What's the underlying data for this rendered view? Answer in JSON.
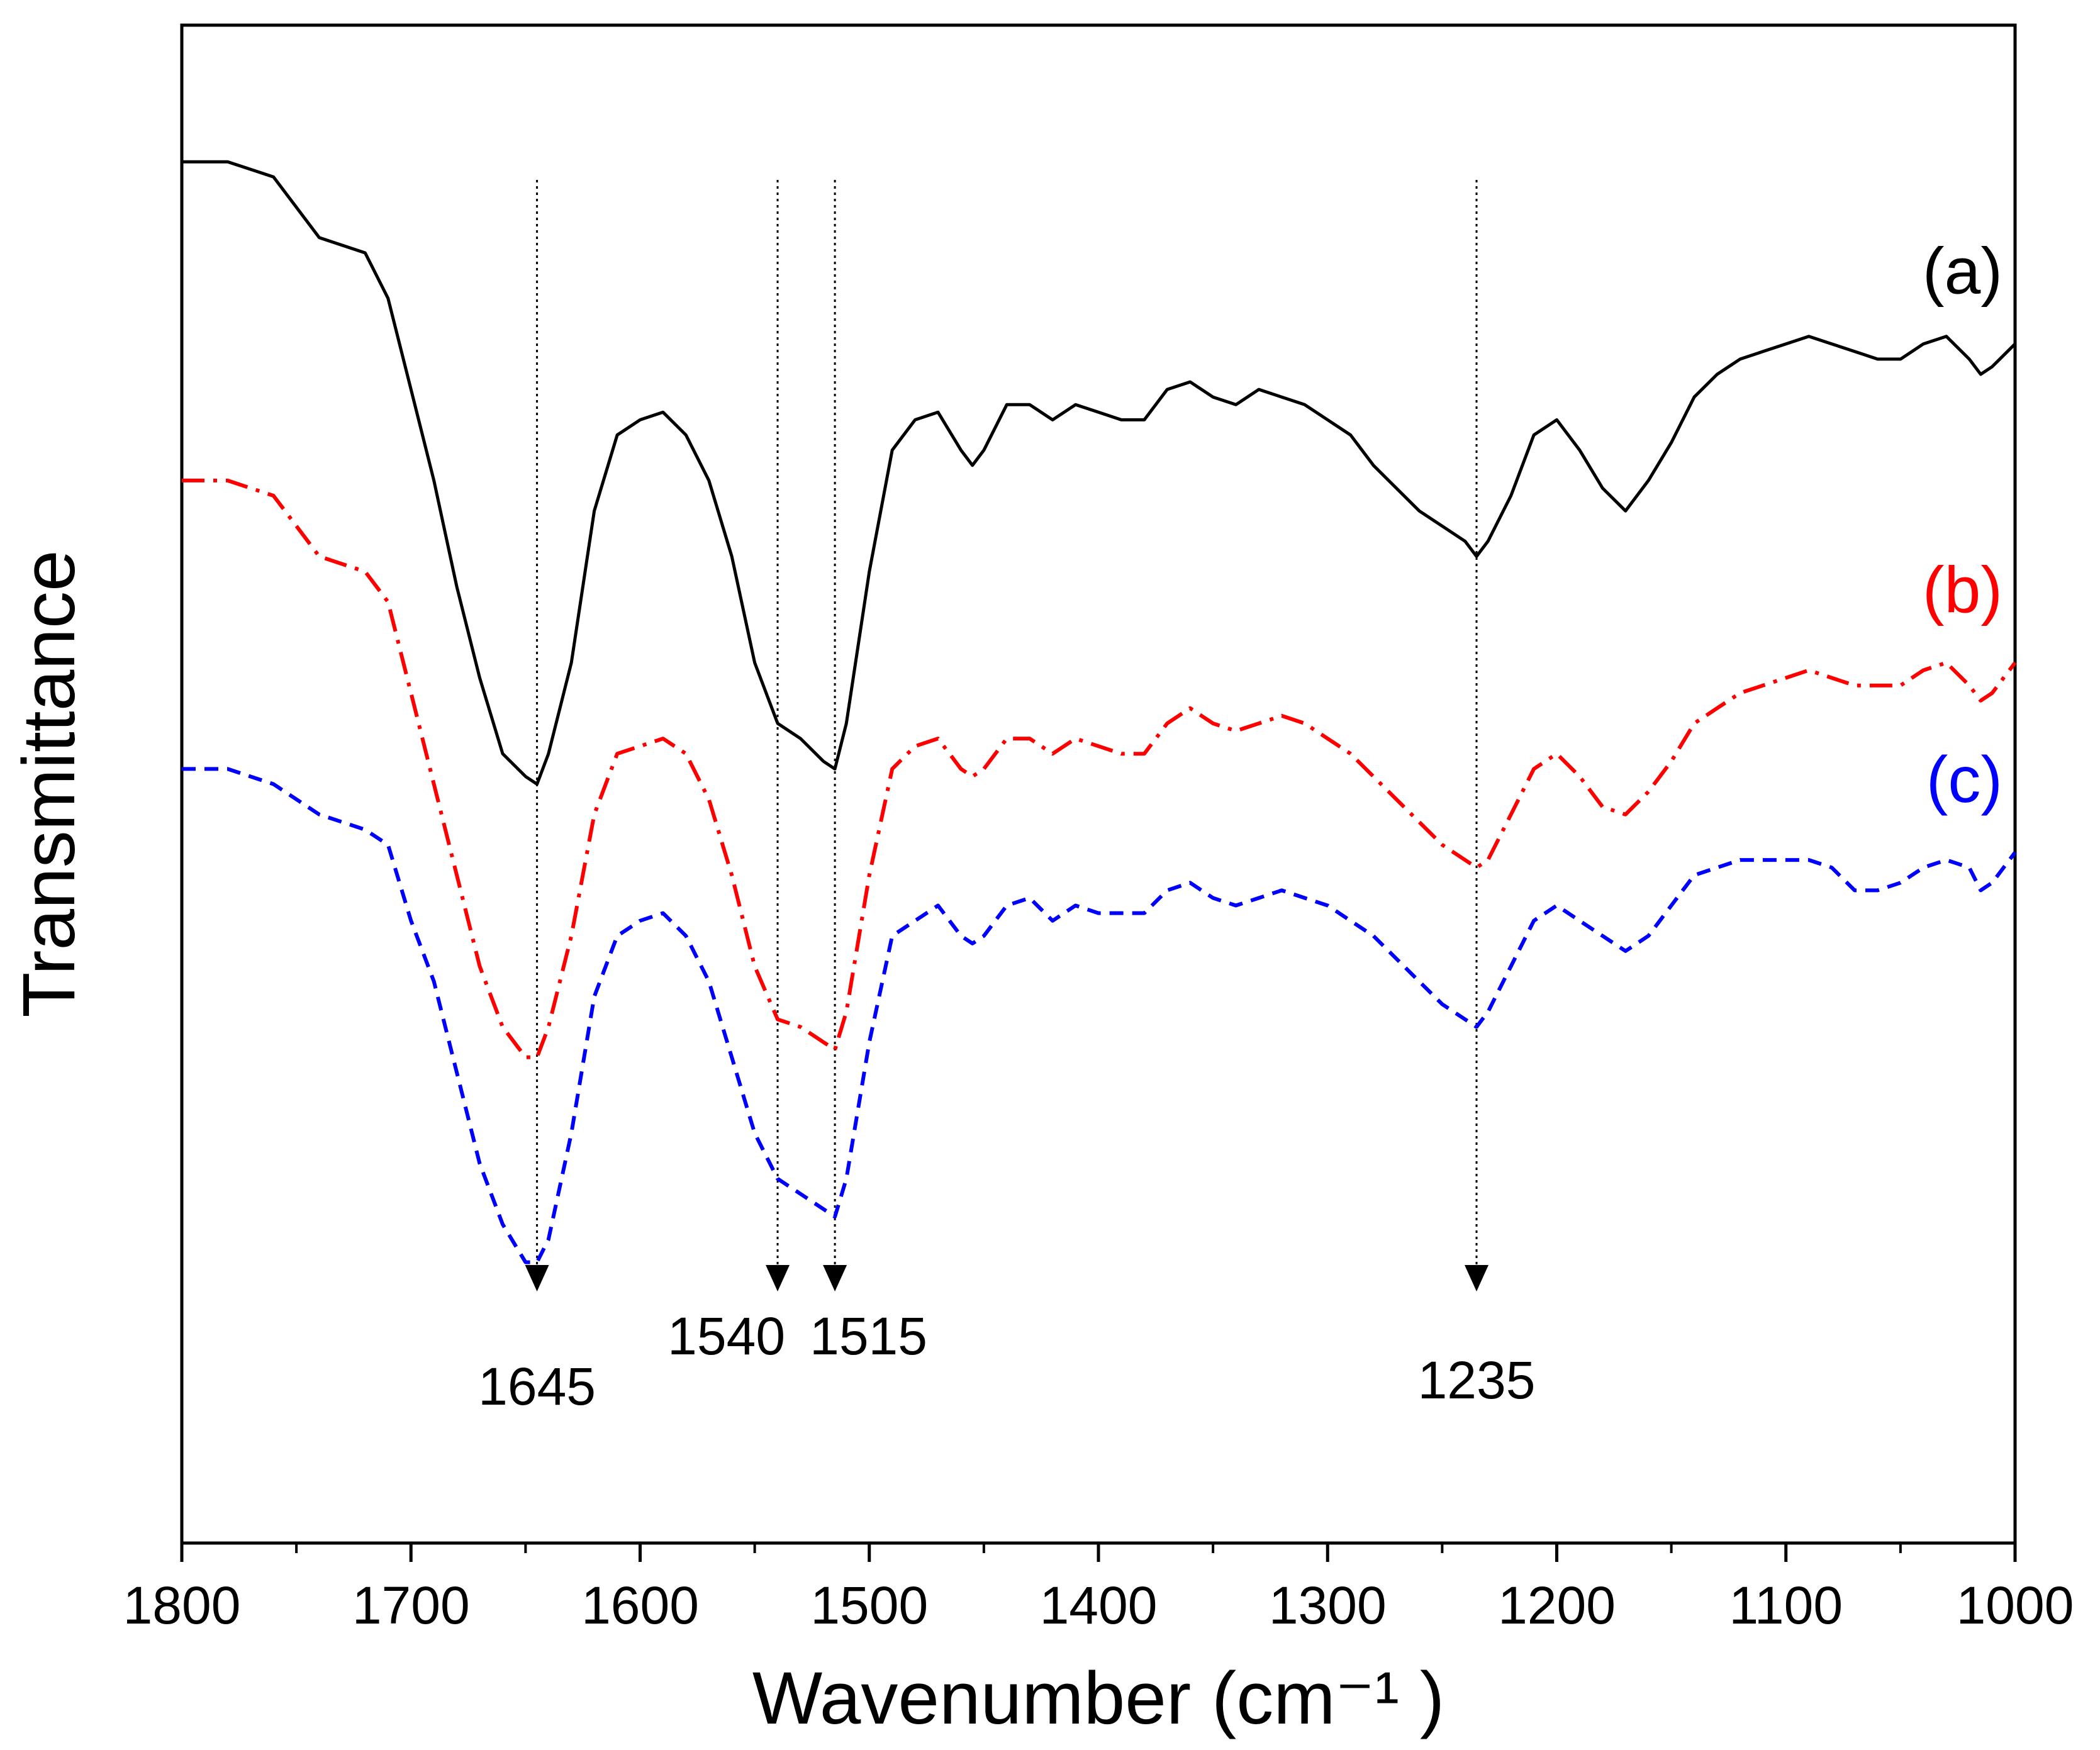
{
  "chart_data": {
    "type": "line",
    "title": "",
    "xlabel": "Wavenumber (cm⁻¹ )",
    "ylabel": "Transmittance",
    "xlim": [
      1800,
      1000
    ],
    "x_reversed": true,
    "ylim": [
      0,
      100
    ],
    "grid": false,
    "x_ticks": [
      1800,
      1700,
      1600,
      1500,
      1400,
      1300,
      1200,
      1100,
      1000
    ],
    "x_tick_labels": [
      "1800",
      "1700",
      "1600",
      "1500",
      "1400",
      "1300",
      "1200",
      "1100",
      "1000"
    ],
    "series": [
      {
        "name": "(a)",
        "label": "(a)",
        "color": "#000000",
        "style": "solid",
        "x": [
          1800,
          1780,
          1760,
          1740,
          1720,
          1710,
          1700,
          1690,
          1680,
          1670,
          1660,
          1650,
          1645,
          1640,
          1630,
          1620,
          1610,
          1600,
          1590,
          1580,
          1570,
          1560,
          1550,
          1540,
          1530,
          1520,
          1515,
          1510,
          1500,
          1490,
          1480,
          1470,
          1460,
          1455,
          1450,
          1440,
          1430,
          1420,
          1410,
          1400,
          1390,
          1380,
          1370,
          1360,
          1350,
          1340,
          1330,
          1320,
          1310,
          1300,
          1290,
          1280,
          1270,
          1260,
          1250,
          1240,
          1235,
          1230,
          1220,
          1210,
          1200,
          1190,
          1180,
          1170,
          1160,
          1150,
          1140,
          1130,
          1120,
          1110,
          1100,
          1090,
          1080,
          1070,
          1060,
          1050,
          1040,
          1030,
          1020,
          1015,
          1010,
          1000
        ],
        "y": [
          91,
          91,
          90,
          86,
          85,
          82,
          76,
          70,
          63,
          57,
          52,
          50.5,
          50,
          52,
          58,
          68,
          73,
          74,
          74.5,
          73,
          70,
          65,
          58,
          54,
          53,
          51.5,
          51,
          54,
          64,
          72,
          74,
          74.5,
          72,
          71,
          72,
          75,
          75,
          74,
          75,
          74.5,
          74,
          74,
          76,
          76.5,
          75.5,
          75,
          76,
          75.5,
          75,
          74,
          73,
          71,
          69.5,
          68,
          67,
          66,
          65,
          66,
          69,
          73,
          74,
          72,
          69.5,
          68,
          70,
          72.5,
          75.5,
          77,
          78,
          78.5,
          79,
          79.5,
          79,
          78.5,
          78,
          78,
          79,
          79.5,
          78,
          77,
          77.5,
          79
        ]
      },
      {
        "name": "(b)",
        "label": "(b)",
        "color": "#ff0000",
        "style": "dashdot",
        "x": [
          1800,
          1780,
          1760,
          1740,
          1720,
          1710,
          1700,
          1690,
          1680,
          1670,
          1660,
          1650,
          1645,
          1640,
          1630,
          1620,
          1610,
          1600,
          1590,
          1580,
          1570,
          1560,
          1550,
          1540,
          1530,
          1520,
          1515,
          1510,
          1500,
          1490,
          1480,
          1470,
          1460,
          1455,
          1450,
          1440,
          1430,
          1420,
          1410,
          1400,
          1390,
          1380,
          1370,
          1360,
          1350,
          1340,
          1330,
          1320,
          1310,
          1300,
          1290,
          1280,
          1270,
          1260,
          1250,
          1240,
          1235,
          1230,
          1220,
          1210,
          1200,
          1190,
          1180,
          1170,
          1160,
          1150,
          1140,
          1130,
          1120,
          1110,
          1100,
          1090,
          1080,
          1070,
          1060,
          1050,
          1040,
          1030,
          1020,
          1015,
          1010,
          1000
        ],
        "y": [
          70,
          70,
          69,
          65,
          64,
          62,
          56,
          50,
          44,
          38,
          34,
          32,
          32,
          34,
          40,
          48,
          52,
          52.5,
          53,
          52,
          49,
          44,
          38,
          34.5,
          34,
          33,
          32.5,
          35,
          44,
          51,
          52.5,
          53,
          51,
          50.5,
          51,
          53,
          53,
          52,
          53,
          52.5,
          52,
          52,
          54,
          55,
          54,
          53.5,
          54,
          54.5,
          54,
          53,
          52,
          50.5,
          49,
          47.5,
          46,
          45,
          44.5,
          45,
          48,
          51,
          52,
          50.5,
          48.5,
          48,
          49.5,
          51.5,
          54,
          55,
          56,
          56.5,
          57,
          57.5,
          57,
          56.5,
          56.5,
          56.5,
          57.5,
          58,
          56.5,
          55.5,
          56,
          58
        ]
      },
      {
        "name": "(c)",
        "label": "(c)",
        "color": "#0000ff",
        "style": "dashed",
        "x": [
          1800,
          1780,
          1760,
          1740,
          1720,
          1710,
          1700,
          1690,
          1680,
          1670,
          1660,
          1650,
          1645,
          1640,
          1630,
          1620,
          1610,
          1600,
          1590,
          1580,
          1570,
          1560,
          1550,
          1540,
          1530,
          1520,
          1515,
          1510,
          1500,
          1490,
          1480,
          1470,
          1460,
          1455,
          1450,
          1440,
          1430,
          1420,
          1410,
          1400,
          1390,
          1380,
          1370,
          1360,
          1350,
          1340,
          1330,
          1320,
          1310,
          1300,
          1290,
          1280,
          1270,
          1260,
          1250,
          1240,
          1235,
          1230,
          1220,
          1210,
          1200,
          1190,
          1180,
          1170,
          1160,
          1150,
          1140,
          1130,
          1120,
          1110,
          1100,
          1090,
          1080,
          1070,
          1060,
          1050,
          1040,
          1030,
          1020,
          1015,
          1010,
          1000
        ],
        "y": [
          51,
          51,
          50,
          48,
          47,
          46,
          41,
          37,
          31,
          25,
          21,
          18.5,
          18.5,
          20,
          27,
          36,
          40,
          41,
          41.5,
          40,
          37,
          32,
          27,
          24,
          23,
          22,
          21.5,
          24,
          33,
          40,
          41,
          42,
          40,
          39.5,
          40,
          42,
          42.5,
          41,
          42,
          41.5,
          41.5,
          41.5,
          43,
          43.5,
          42.5,
          42,
          42.5,
          43,
          42.5,
          42,
          41,
          40,
          38.5,
          37,
          35.5,
          34.5,
          34,
          35,
          38,
          41,
          42,
          41,
          40,
          39,
          40,
          42,
          44,
          44.5,
          45,
          45,
          45,
          45,
          44.5,
          43,
          43,
          43.5,
          44.5,
          45,
          44.5,
          43,
          43.5,
          45.5
        ]
      }
    ],
    "peak_markers": [
      {
        "x": 1645,
        "label": "1645"
      },
      {
        "x": 1540,
        "label": "1540"
      },
      {
        "x": 1515,
        "label": "1515"
      },
      {
        "x": 1235,
        "label": "1235"
      }
    ]
  }
}
